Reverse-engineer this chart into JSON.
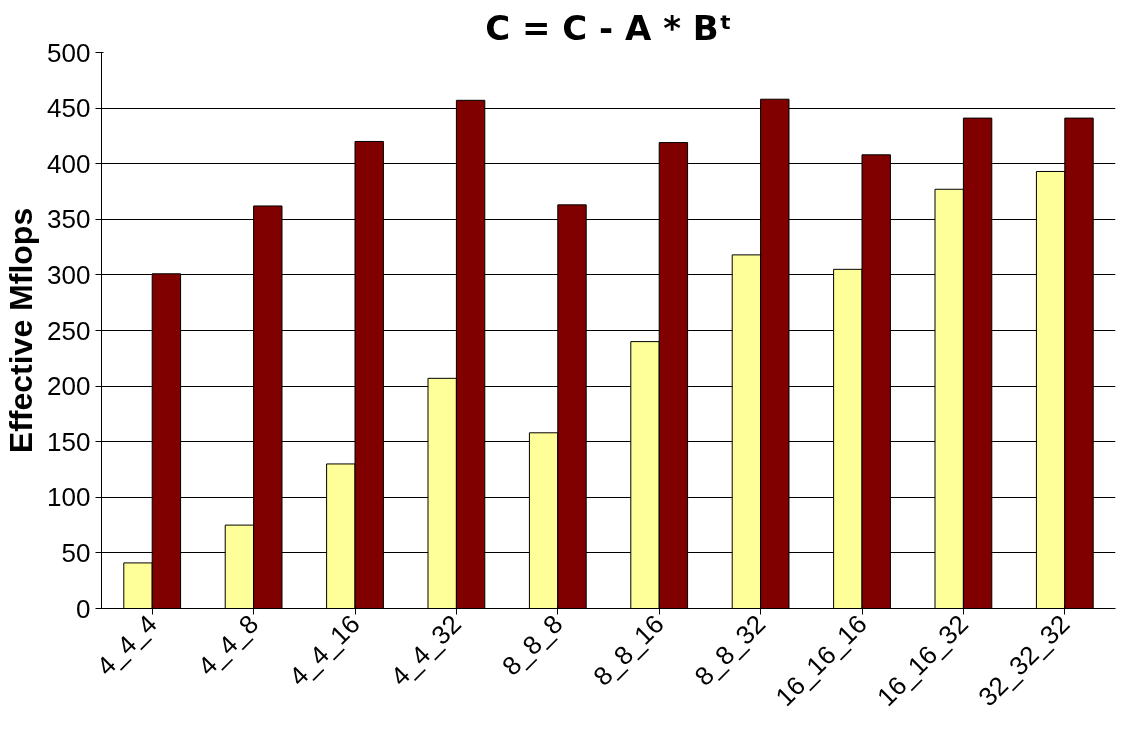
{
  "chart_data": {
    "type": "bar",
    "title": "C = C - A * Bᵗ",
    "ylabel": "Effective Mflops",
    "categories": [
      "4_4_4",
      "4_4_8",
      "4_4_16",
      "4_4_32",
      "8_8_8",
      "8_8_16",
      "8_8_32",
      "16_16_16",
      "16_16_32",
      "32_32_32"
    ],
    "series": [
      {
        "color": "#ffff99",
        "values": [
          41,
          75,
          130,
          207,
          158,
          240,
          318,
          305,
          377,
          393
        ]
      },
      {
        "color": "#800000",
        "values": [
          301,
          362,
          420,
          457,
          363,
          419,
          458,
          408,
          441,
          441
        ]
      }
    ],
    "ylim": [
      0,
      500
    ],
    "yticks": [
      0,
      50,
      100,
      150,
      200,
      250,
      300,
      350,
      400,
      450,
      500
    ],
    "grid": "y"
  }
}
